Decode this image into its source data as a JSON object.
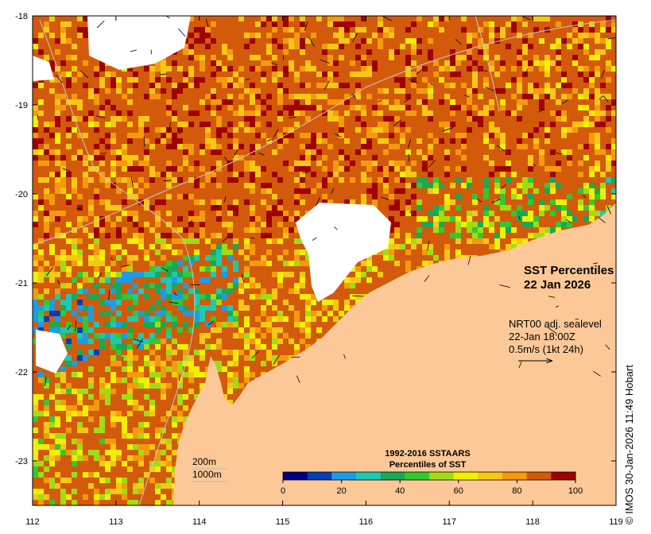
{
  "map": {
    "title_line1": "SST Percentiles",
    "title_line2": "22 Jan 2026",
    "current_info": {
      "line1": "NRT00 adj. sealevel",
      "line2": "22-Jan 18:00Z",
      "line3": "0.5m/s (1kt 24h)"
    },
    "isobaths": {
      "shallow": "200m",
      "deep": "1000m"
    },
    "credit": "© IMOS 30-Jan-2026 11:49 Hobart",
    "axes": {
      "lon_ticks": [
        "112",
        "113",
        "114",
        "115",
        "116",
        "117",
        "118",
        "119"
      ],
      "lat_ticks": [
        "-18",
        "-19",
        "-20",
        "-21",
        "-22",
        "-23"
      ],
      "lon_range": [
        112,
        119
      ],
      "lat_range": [
        -23.5,
        -18
      ]
    },
    "colorbar": {
      "title_line1": "1992-2016 SSTAARS",
      "title_line2": "Percentiles of SST",
      "tick_labels": [
        "0",
        "20",
        "40",
        "60",
        "80",
        "100"
      ],
      "colors": [
        "#00007f",
        "#0a3cb4",
        "#1e9be6",
        "#1ec8b4",
        "#19a855",
        "#32c832",
        "#a0dc14",
        "#f0f000",
        "#f5c814",
        "#f59b0a",
        "#d25a0a",
        "#a00000"
      ]
    },
    "colors": {
      "land": "#fdc897",
      "cloud": "#ffffff",
      "sea_hot": "#a00000",
      "sea_warm": "#d25a0a"
    }
  }
}
